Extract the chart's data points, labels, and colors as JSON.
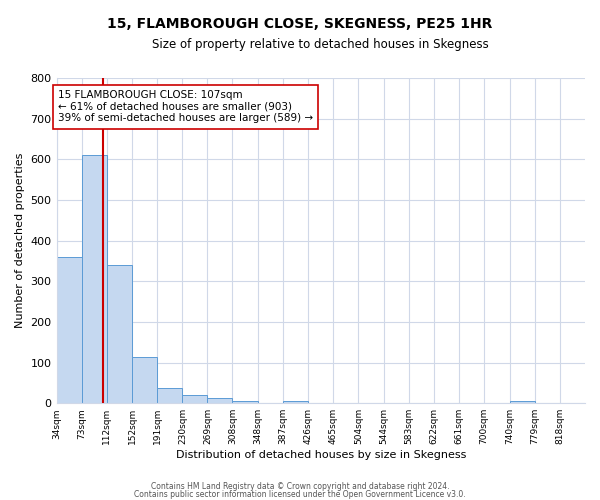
{
  "title": "15, FLAMBOROUGH CLOSE, SKEGNESS, PE25 1HR",
  "subtitle": "Size of property relative to detached houses in Skegness",
  "xlabel": "Distribution of detached houses by size in Skegness",
  "ylabel": "Number of detached properties",
  "bar_labels": [
    "34sqm",
    "73sqm",
    "112sqm",
    "152sqm",
    "191sqm",
    "230sqm",
    "269sqm",
    "308sqm",
    "348sqm",
    "387sqm",
    "426sqm",
    "465sqm",
    "504sqm",
    "544sqm",
    "583sqm",
    "622sqm",
    "661sqm",
    "700sqm",
    "740sqm",
    "779sqm",
    "818sqm"
  ],
  "bar_values": [
    360,
    610,
    340,
    113,
    38,
    20,
    12,
    5,
    0,
    5,
    0,
    0,
    0,
    0,
    0,
    0,
    0,
    0,
    5,
    0,
    0
  ],
  "bar_color": "#c5d8f0",
  "bar_edge_color": "#5b9bd5",
  "property_line_x": 107,
  "property_line_label": "15 FLAMBOROUGH CLOSE: 107sqm",
  "annotation_line1": "← 61% of detached houses are smaller (903)",
  "annotation_line2": "39% of semi-detached houses are larger (589) →",
  "vline_color": "#cc0000",
  "ylim": [
    0,
    800
  ],
  "yticks": [
    0,
    100,
    200,
    300,
    400,
    500,
    600,
    700,
    800
  ],
  "background_color": "#ffffff",
  "grid_color": "#d0d8e8",
  "footer1": "Contains HM Land Registry data © Crown copyright and database right 2024.",
  "footer2": "Contains public sector information licensed under the Open Government Licence v3.0.",
  "bin_width": 39
}
